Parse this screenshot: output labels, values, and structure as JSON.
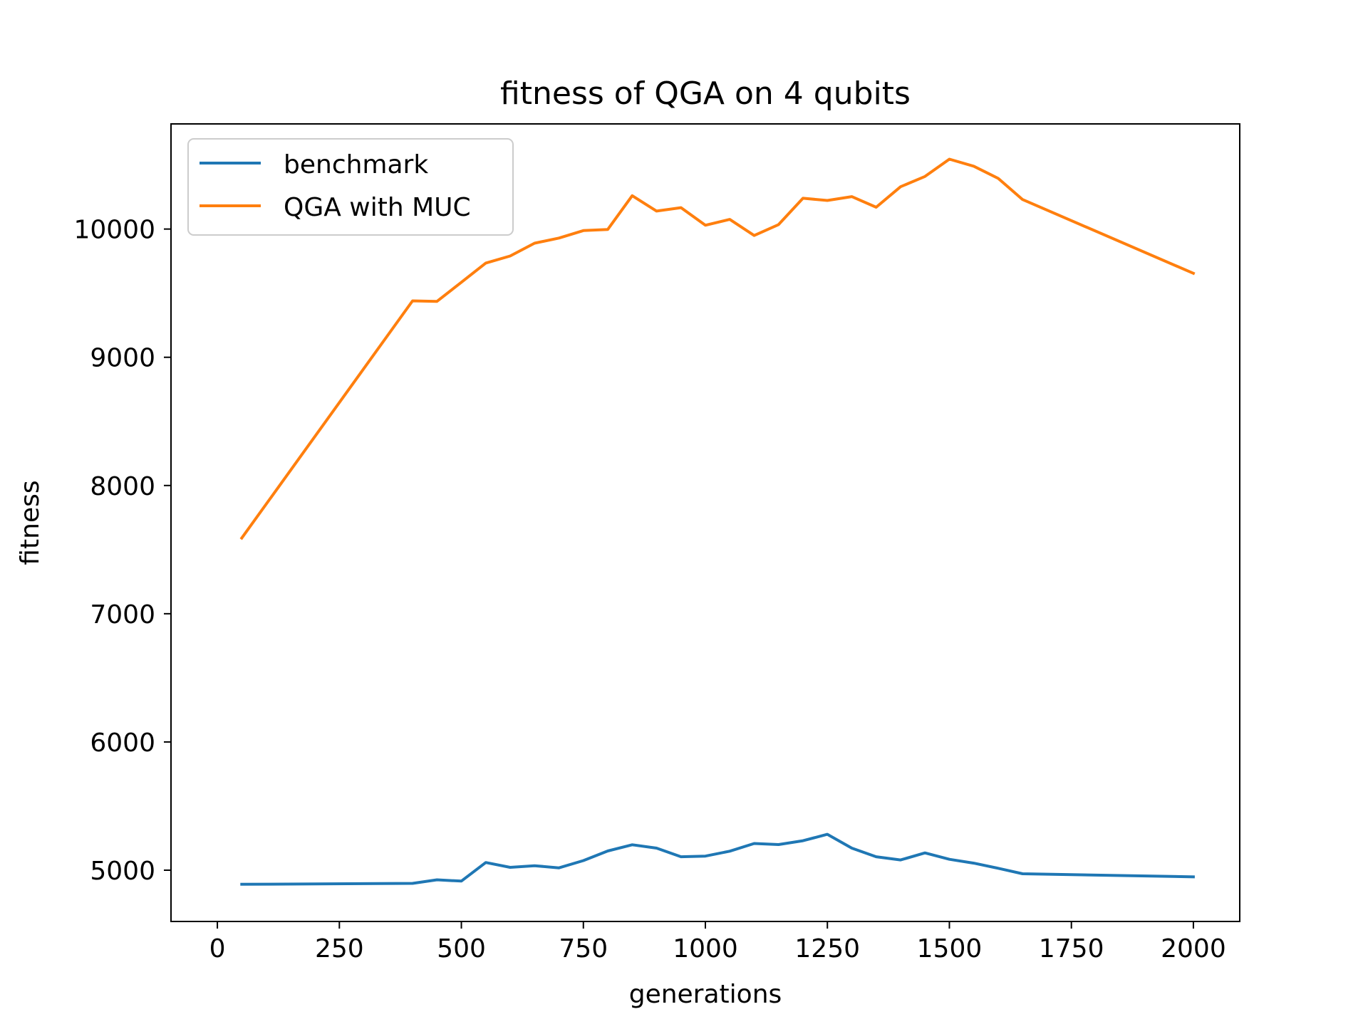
{
  "chart_data": {
    "type": "line",
    "title": "fitness of QGA on 4 qubits",
    "xlabel": "generations",
    "ylabel": "fitness",
    "xlim": [
      -95,
      2095
    ],
    "ylim": [
      4600,
      10820
    ],
    "xticks": [
      0,
      250,
      500,
      750,
      1000,
      1250,
      1500,
      1750,
      2000
    ],
    "yticks": [
      5000,
      6000,
      7000,
      8000,
      9000,
      10000
    ],
    "grid": false,
    "legend_position": "upper-left",
    "series": [
      {
        "name": "benchmark",
        "color": "#1f77b4",
        "x": [
          50,
          400,
          450,
          500,
          550,
          600,
          650,
          700,
          750,
          800,
          850,
          900,
          950,
          1000,
          1050,
          1100,
          1150,
          1200,
          1250,
          1300,
          1350,
          1400,
          1450,
          1500,
          1550,
          1600,
          1650,
          2000
        ],
        "y": [
          4890,
          4897,
          4925,
          4915,
          5060,
          5022,
          5035,
          5018,
          5075,
          5150,
          5198,
          5172,
          5105,
          5110,
          5148,
          5208,
          5200,
          5230,
          5280,
          5172,
          5105,
          5080,
          5135,
          5085,
          5055,
          5015,
          4972,
          4948
        ]
      },
      {
        "name": "QGA with MUC",
        "color": "#ff7f0e",
        "x": [
          50,
          400,
          450,
          500,
          550,
          600,
          650,
          700,
          750,
          800,
          850,
          900,
          950,
          1000,
          1050,
          1100,
          1150,
          1200,
          1250,
          1300,
          1350,
          1400,
          1450,
          1500,
          1550,
          1600,
          1650,
          2000
        ],
        "y": [
          7590,
          9440,
          9436,
          9585,
          9735,
          9790,
          9890,
          9930,
          9988,
          9997,
          10260,
          10140,
          10167,
          10030,
          10075,
          9950,
          10035,
          10240,
          10223,
          10253,
          10170,
          10330,
          10410,
          10545,
          10490,
          10395,
          10230,
          9655
        ]
      }
    ]
  }
}
